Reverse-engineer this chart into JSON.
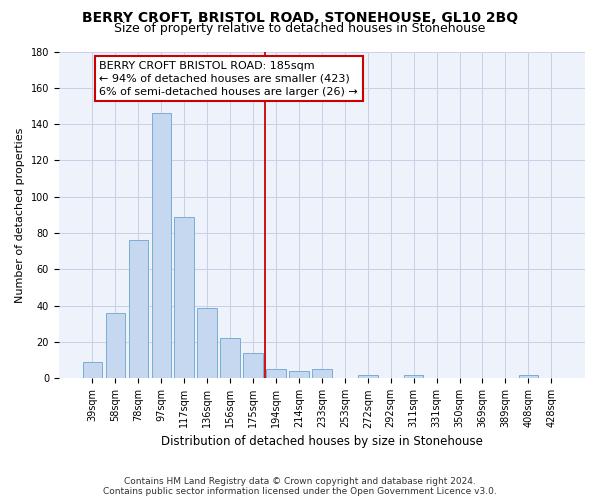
{
  "title": "BERRY CROFT, BRISTOL ROAD, STONEHOUSE, GL10 2BQ",
  "subtitle": "Size of property relative to detached houses in Stonehouse",
  "xlabel": "Distribution of detached houses by size in Stonehouse",
  "ylabel": "Number of detached properties",
  "categories": [
    "39sqm",
    "58sqm",
    "78sqm",
    "97sqm",
    "117sqm",
    "136sqm",
    "156sqm",
    "175sqm",
    "194sqm",
    "214sqm",
    "233sqm",
    "253sqm",
    "272sqm",
    "292sqm",
    "311sqm",
    "331sqm",
    "350sqm",
    "369sqm",
    "389sqm",
    "408sqm",
    "428sqm"
  ],
  "values": [
    9,
    36,
    76,
    146,
    89,
    39,
    22,
    14,
    5,
    4,
    5,
    0,
    2,
    0,
    2,
    0,
    0,
    0,
    0,
    2,
    0
  ],
  "bar_color": "#c5d8f0",
  "bar_edge_color": "#7aadd4",
  "reference_line_index": 7.5,
  "annotation_text": "BERRY CROFT BRISTOL ROAD: 185sqm\n← 94% of detached houses are smaller (423)\n6% of semi-detached houses are larger (26) →",
  "annotation_box_color": "#ffffff",
  "annotation_box_edge_color": "#cc0000",
  "vline_color": "#cc0000",
  "ylim": [
    0,
    180
  ],
  "background_color": "#eef2fb",
  "grid_color": "#c8cfe8",
  "footer": "Contains HM Land Registry data © Crown copyright and database right 2024.\nContains public sector information licensed under the Open Government Licence v3.0.",
  "title_fontsize": 10,
  "subtitle_fontsize": 9,
  "ylabel_fontsize": 8,
  "xlabel_fontsize": 8.5,
  "tick_fontsize": 7,
  "annotation_fontsize": 8,
  "footer_fontsize": 6.5
}
